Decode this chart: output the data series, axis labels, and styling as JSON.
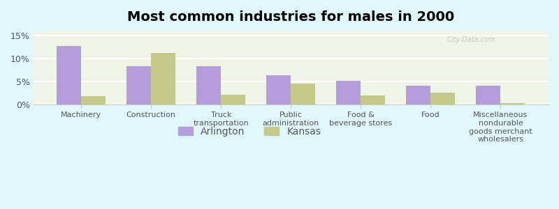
{
  "title": "Most common industries for males in 2000",
  "categories": [
    "Machinery",
    "Construction",
    "Truck\ntransportation",
    "Public\nadministration",
    "Food &\nbeverage stores",
    "Food",
    "Miscellaneous\nnondurable\ngoods merchant\nwholesalers"
  ],
  "arlington": [
    12.7,
    8.3,
    8.3,
    6.3,
    5.1,
    4.1,
    4.1
  ],
  "kansas": [
    1.8,
    11.1,
    2.1,
    4.5,
    1.9,
    2.5,
    0.3
  ],
  "arlington_color": "#b39ddb",
  "kansas_color": "#c5c98a",
  "background_color": "#e0f7fa",
  "plot_bg_top": "#f5f5e8",
  "plot_bg_bottom": "#e8f5e9",
  "yticks": [
    0,
    5,
    10,
    15
  ],
  "ylim": [
    0,
    16
  ],
  "bar_width": 0.35,
  "legend_labels": [
    "Arlington",
    "Kansas"
  ],
  "title_fontsize": 14,
  "axis_label_fontsize": 9,
  "legend_fontsize": 10
}
